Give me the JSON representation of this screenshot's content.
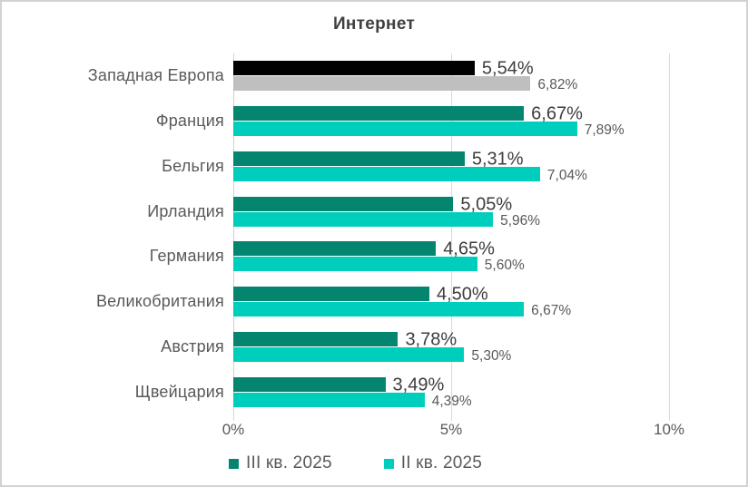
{
  "chart_data": {
    "type": "bar",
    "orientation": "horizontal",
    "title": "Интернет",
    "categories": [
      "Западная Европа",
      "Франция",
      "Бельгия",
      "Ирландия",
      "Германия",
      "Великобритания",
      "Австрия",
      "Щвейцария"
    ],
    "series": [
      {
        "name": "III кв. 2025",
        "color": "#038570",
        "values": [
          5.54,
          6.67,
          5.31,
          5.05,
          4.65,
          4.5,
          3.78,
          3.49
        ],
        "labels": [
          "5,54%",
          "6,67%",
          "5,31%",
          "5,05%",
          "4,65%",
          "4,50%",
          "3,78%",
          "3,49%"
        ]
      },
      {
        "name": "II кв. 2025",
        "color": "#00CEBC",
        "values": [
          6.82,
          7.89,
          7.04,
          5.96,
          5.6,
          6.67,
          5.3,
          4.39
        ],
        "labels": [
          "6,82%",
          "7,89%",
          "7,04%",
          "5,96%",
          "5,60%",
          "6,67%",
          "5,30%",
          "4,39%"
        ]
      }
    ],
    "highlight": {
      "category": "Западная Европа",
      "colors": [
        "#000000",
        "#BFBFBF"
      ]
    },
    "x_axis": {
      "tick_labels": [
        "0%",
        "5%",
        "10%"
      ],
      "tick_values": [
        0,
        5,
        10
      ],
      "min": 0,
      "max": 10
    },
    "legend": [
      "III кв. 2025",
      "II кв. 2025"
    ],
    "legend_position": "bottom",
    "grid": true,
    "colors": {
      "grid": "#d9d9d9",
      "category_text": "#595959",
      "axis_text": "#595959",
      "primary_label_text": "#3d3d3d",
      "secondary_label_text": "#595959",
      "title_text": "#404040"
    }
  }
}
